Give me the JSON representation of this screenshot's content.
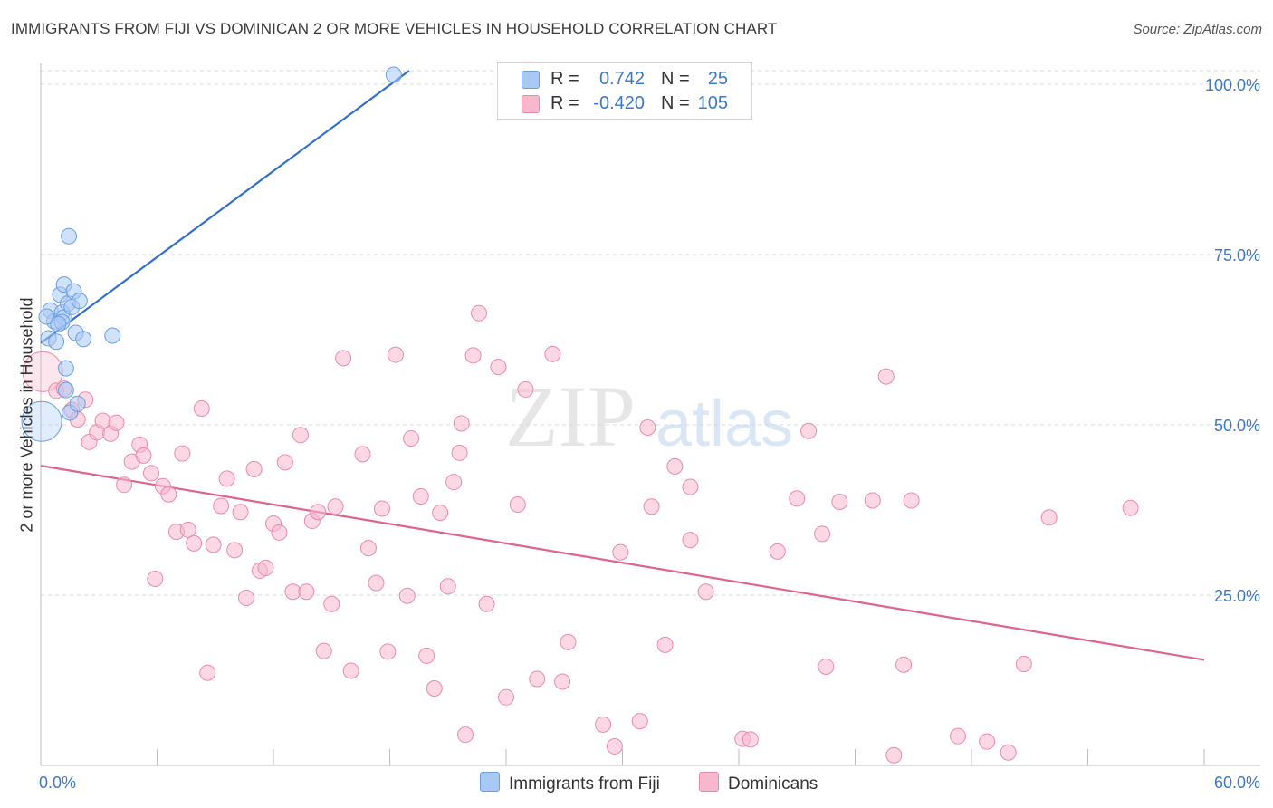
{
  "title": "IMMIGRANTS FROM FIJI VS DOMINICAN 2 OR MORE VEHICLES IN HOUSEHOLD CORRELATION CHART",
  "source": "Source: ZipAtlas.com",
  "watermark": {
    "zip": "ZIP",
    "atlas": "atlas"
  },
  "legend_top": [
    {
      "r_label": "R =",
      "r_value": "0.742",
      "n_label": "N =",
      "n_value": "25"
    },
    {
      "r_label": "R =",
      "r_value": "-0.420",
      "n_label": "N =",
      "n_value": "105"
    }
  ],
  "legend_bottom": [
    "Immigrants from Fiji",
    "Dominicans"
  ],
  "colors": {
    "fiji_fill": "#a9c9f5",
    "fiji_stroke": "#6b9fe0",
    "fiji_line": "#2f6fcc",
    "dom_fill": "#f7b8ce",
    "dom_stroke": "#e98aac",
    "dom_line": "#e0628f",
    "tick_label": "#3c78c8",
    "grid": "#d9d9d9"
  },
  "chart_data": {
    "type": "scatter",
    "title": "IMMIGRANTS FROM FIJI VS DOMINICAN 2 OR MORE VEHICLES IN HOUSEHOLD CORRELATION CHART",
    "xlabel": "",
    "ylabel": "2 or more Vehicles in Household",
    "xlim": [
      0,
      60
    ],
    "ylim": [
      0,
      102
    ],
    "x_tick_labels": [
      "0.0%",
      "60.0%"
    ],
    "y_ticks": [
      25,
      50,
      75,
      100
    ],
    "y_tick_labels": [
      "25.0%",
      "50.0%",
      "75.0%",
      "100.0%"
    ],
    "grid": true,
    "legend_placement": "top-center",
    "series": [
      {
        "name": "Immigrants from Fiji",
        "r": 0.742,
        "n": 25,
        "trend": {
          "x": [
            0,
            19
          ],
          "y": [
            62.0,
            102.0
          ]
        },
        "points": [
          {
            "x": 0.05,
            "y": 50.5,
            "big": true
          },
          {
            "x": 0.4,
            "y": 62.7
          },
          {
            "x": 0.5,
            "y": 66.8
          },
          {
            "x": 0.7,
            "y": 65.2
          },
          {
            "x": 0.8,
            "y": 62.2
          },
          {
            "x": 1.0,
            "y": 69.1
          },
          {
            "x": 1.1,
            "y": 66.5
          },
          {
            "x": 1.2,
            "y": 65.8
          },
          {
            "x": 1.1,
            "y": 65.1
          },
          {
            "x": 1.2,
            "y": 70.6
          },
          {
            "x": 1.3,
            "y": 58.3
          },
          {
            "x": 1.3,
            "y": 55.1
          },
          {
            "x": 1.4,
            "y": 67.8
          },
          {
            "x": 1.45,
            "y": 77.7
          },
          {
            "x": 1.5,
            "y": 51.8
          },
          {
            "x": 1.7,
            "y": 69.6
          },
          {
            "x": 1.6,
            "y": 67.3
          },
          {
            "x": 1.8,
            "y": 63.5
          },
          {
            "x": 2.0,
            "y": 68.2
          },
          {
            "x": 1.9,
            "y": 53.1
          },
          {
            "x": 2.2,
            "y": 62.6
          },
          {
            "x": 3.7,
            "y": 63.1
          },
          {
            "x": 18.2,
            "y": 101.4
          },
          {
            "x": 0.3,
            "y": 65.9
          },
          {
            "x": 0.9,
            "y": 64.8
          }
        ]
      },
      {
        "name": "Dominicans",
        "r": -0.42,
        "n": 105,
        "trend": {
          "x": [
            0,
            60
          ],
          "y": [
            44.0,
            15.5
          ]
        },
        "points": [
          {
            "x": 0.1,
            "y": 57.8,
            "big": true
          },
          {
            "x": 0.8,
            "y": 55.0
          },
          {
            "x": 1.2,
            "y": 55.3
          },
          {
            "x": 1.6,
            "y": 52.2
          },
          {
            "x": 1.9,
            "y": 50.8
          },
          {
            "x": 2.3,
            "y": 53.7
          },
          {
            "x": 2.5,
            "y": 47.5
          },
          {
            "x": 2.9,
            "y": 48.9
          },
          {
            "x": 3.2,
            "y": 50.6
          },
          {
            "x": 3.6,
            "y": 48.7
          },
          {
            "x": 3.9,
            "y": 50.3
          },
          {
            "x": 4.3,
            "y": 41.2
          },
          {
            "x": 4.7,
            "y": 44.6
          },
          {
            "x": 5.1,
            "y": 47.1
          },
          {
            "x": 5.3,
            "y": 45.5
          },
          {
            "x": 5.7,
            "y": 42.9
          },
          {
            "x": 5.9,
            "y": 27.4
          },
          {
            "x": 6.3,
            "y": 41.0
          },
          {
            "x": 6.6,
            "y": 39.8
          },
          {
            "x": 7.0,
            "y": 34.3
          },
          {
            "x": 7.3,
            "y": 45.8
          },
          {
            "x": 7.6,
            "y": 34.6
          },
          {
            "x": 7.9,
            "y": 32.6
          },
          {
            "x": 8.3,
            "y": 52.4
          },
          {
            "x": 8.6,
            "y": 13.6
          },
          {
            "x": 8.9,
            "y": 32.4
          },
          {
            "x": 9.3,
            "y": 38.1
          },
          {
            "x": 9.6,
            "y": 42.1
          },
          {
            "x": 10.0,
            "y": 31.6
          },
          {
            "x": 10.3,
            "y": 37.2
          },
          {
            "x": 10.6,
            "y": 24.6
          },
          {
            "x": 11.0,
            "y": 43.5
          },
          {
            "x": 11.3,
            "y": 28.6
          },
          {
            "x": 11.6,
            "y": 29.0
          },
          {
            "x": 12.0,
            "y": 35.5
          },
          {
            "x": 12.3,
            "y": 34.2
          },
          {
            "x": 12.6,
            "y": 44.5
          },
          {
            "x": 13.0,
            "y": 25.5
          },
          {
            "x": 13.4,
            "y": 48.5
          },
          {
            "x": 13.7,
            "y": 25.5
          },
          {
            "x": 14.0,
            "y": 35.9
          },
          {
            "x": 14.3,
            "y": 37.2
          },
          {
            "x": 14.6,
            "y": 16.8
          },
          {
            "x": 15.0,
            "y": 23.7
          },
          {
            "x": 15.2,
            "y": 38.0
          },
          {
            "x": 15.6,
            "y": 59.8
          },
          {
            "x": 16.0,
            "y": 13.9
          },
          {
            "x": 16.6,
            "y": 45.7
          },
          {
            "x": 16.9,
            "y": 31.9
          },
          {
            "x": 17.3,
            "y": 26.8
          },
          {
            "x": 17.6,
            "y": 37.7
          },
          {
            "x": 17.9,
            "y": 16.7
          },
          {
            "x": 18.3,
            "y": 60.3
          },
          {
            "x": 18.9,
            "y": 24.9
          },
          {
            "x": 19.1,
            "y": 48.0
          },
          {
            "x": 19.6,
            "y": 39.5
          },
          {
            "x": 19.9,
            "y": 16.1
          },
          {
            "x": 20.3,
            "y": 11.3
          },
          {
            "x": 20.6,
            "y": 37.1
          },
          {
            "x": 21.0,
            "y": 26.3
          },
          {
            "x": 21.3,
            "y": 41.6
          },
          {
            "x": 21.6,
            "y": 45.9
          },
          {
            "x": 21.9,
            "y": 4.5
          },
          {
            "x": 22.3,
            "y": 60.2
          },
          {
            "x": 22.6,
            "y": 66.4
          },
          {
            "x": 23.0,
            "y": 23.7
          },
          {
            "x": 23.6,
            "y": 58.5
          },
          {
            "x": 24.0,
            "y": 10.0
          },
          {
            "x": 24.6,
            "y": 38.3
          },
          {
            "x": 25.0,
            "y": 55.2
          },
          {
            "x": 25.6,
            "y": 12.7
          },
          {
            "x": 26.4,
            "y": 60.4
          },
          {
            "x": 26.9,
            "y": 12.3
          },
          {
            "x": 27.2,
            "y": 18.1
          },
          {
            "x": 29.0,
            "y": 6.0
          },
          {
            "x": 29.9,
            "y": 31.3
          },
          {
            "x": 29.6,
            "y": 2.8
          },
          {
            "x": 30.9,
            "y": 6.5
          },
          {
            "x": 31.3,
            "y": 49.6
          },
          {
            "x": 31.5,
            "y": 38.0
          },
          {
            "x": 32.2,
            "y": 17.7
          },
          {
            "x": 32.7,
            "y": 43.9
          },
          {
            "x": 33.5,
            "y": 33.1
          },
          {
            "x": 33.5,
            "y": 40.9
          },
          {
            "x": 34.3,
            "y": 25.5
          },
          {
            "x": 36.2,
            "y": 3.9
          },
          {
            "x": 36.6,
            "y": 3.8
          },
          {
            "x": 38.0,
            "y": 31.4
          },
          {
            "x": 39.0,
            "y": 39.2
          },
          {
            "x": 39.6,
            "y": 49.1
          },
          {
            "x": 40.3,
            "y": 34.0
          },
          {
            "x": 40.5,
            "y": 14.5
          },
          {
            "x": 41.2,
            "y": 38.7
          },
          {
            "x": 42.9,
            "y": 38.9
          },
          {
            "x": 43.6,
            "y": 57.1
          },
          {
            "x": 44.0,
            "y": 1.5
          },
          {
            "x": 44.5,
            "y": 14.8
          },
          {
            "x": 44.9,
            "y": 38.9
          },
          {
            "x": 47.3,
            "y": 4.3
          },
          {
            "x": 48.8,
            "y": 3.5
          },
          {
            "x": 49.9,
            "y": 1.9
          },
          {
            "x": 50.7,
            "y": 14.9
          },
          {
            "x": 52.0,
            "y": 36.4
          },
          {
            "x": 56.2,
            "y": 37.8
          },
          {
            "x": 21.7,
            "y": 50.2
          }
        ]
      }
    ]
  }
}
